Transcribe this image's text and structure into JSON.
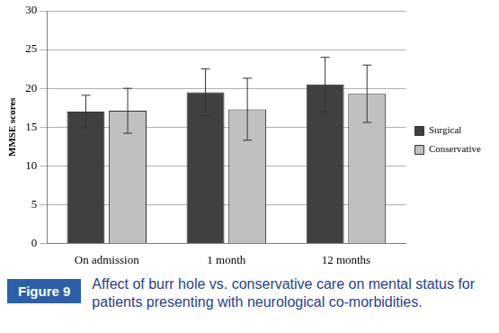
{
  "chart_data": {
    "type": "bar",
    "title": "Affect of burr hole vs. conservative care on mental status for patients presenting with neurological co-morbidities.",
    "figure_label": "Figure 9",
    "y_label": "MMSE scores",
    "categories": [
      "On admission",
      "1 month",
      "12 months"
    ],
    "series": [
      {
        "name": "Surgical",
        "color": "#404040",
        "values": [
          17,
          19.5,
          20.5
        ],
        "error": [
          2.1,
          3,
          3.5
        ]
      },
      {
        "name": "Conservative",
        "color": "#c0c0c0",
        "values": [
          17.1,
          17.3,
          19.3
        ],
        "error": [
          2.9,
          4,
          3.7
        ]
      }
    ],
    "ylim": [
      0,
      30
    ],
    "yticks": [
      0,
      5,
      10,
      15,
      20,
      25,
      30
    ],
    "grid": true,
    "legend": "right"
  }
}
